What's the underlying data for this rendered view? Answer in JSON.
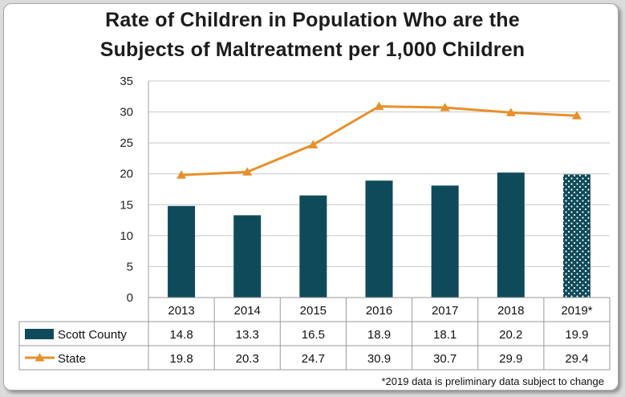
{
  "chart_data": {
    "type": "bar+line",
    "title_line1": "Rate of Children in Population Who are the",
    "title_line2": "Subjects of Maltreatment per 1,000 Children",
    "categories": [
      "2013",
      "2014",
      "2015",
      "2016",
      "2017",
      "2018",
      "2019*"
    ],
    "ylim": [
      0,
      35
    ],
    "yticks": [
      0,
      5,
      10,
      15,
      20,
      25,
      30,
      35
    ],
    "grid": true,
    "series": [
      {
        "name": "Scott County",
        "type": "bar",
        "color": "#0f4a5a",
        "values": [
          14.8,
          13.3,
          16.5,
          18.9,
          18.1,
          20.2,
          19.9
        ],
        "value_labels": [
          "14.8",
          "13.3",
          "16.5",
          "18.9",
          "18.1",
          "20.2",
          "19.9"
        ]
      },
      {
        "name": "State",
        "type": "line",
        "color": "#e8902a",
        "values": [
          19.8,
          20.3,
          24.7,
          30.9,
          30.7,
          29.9,
          29.4
        ],
        "value_labels": [
          "19.8",
          "20.3",
          "24.7",
          "30.9",
          "30.7",
          "29.9",
          "29.4"
        ]
      }
    ],
    "data_table": true,
    "footnote": "*2019 data is preliminary data subject to change"
  }
}
